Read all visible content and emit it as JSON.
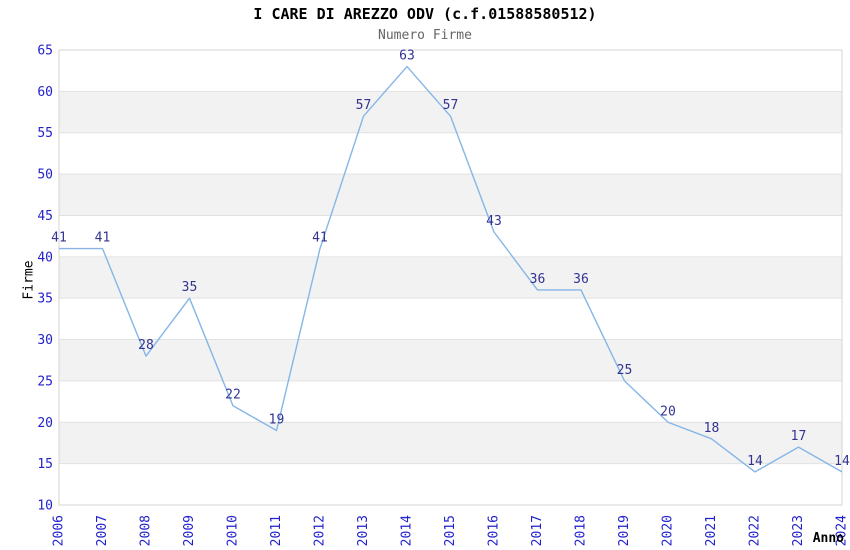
{
  "chart_data": {
    "type": "line",
    "title": "I CARE DI AREZZO ODV (c.f.01588580512)",
    "subtitle": "Numero Firme",
    "xlabel": "Anno",
    "ylabel": "Firme",
    "categories": [
      "2006",
      "2007",
      "2008",
      "2009",
      "2010",
      "2011",
      "2012",
      "2013",
      "2014",
      "2015",
      "2016",
      "2017",
      "2018",
      "2019",
      "2020",
      "2021",
      "2022",
      "2023",
      "2024"
    ],
    "values": [
      41,
      41,
      28,
      35,
      22,
      19,
      41,
      57,
      63,
      57,
      43,
      36,
      36,
      25,
      20,
      18,
      14,
      17,
      14
    ],
    "ylim": [
      10,
      65
    ],
    "ytick_step": 5,
    "yticks": [
      10,
      15,
      20,
      25,
      30,
      35,
      40,
      45,
      50,
      55,
      60,
      65
    ],
    "grid": "horizontal-bands",
    "legend": "none",
    "data_labels_shown": true,
    "x_tick_rotation_deg": -90,
    "colors": {
      "series_line": "#85b6e7",
      "tick_label": "#2222cc",
      "data_label": "#333392",
      "title": "#000000",
      "subtitle": "#666666",
      "axis_title": "#000000",
      "band_fill": "#f2f2f2",
      "gridline": "#e2e2e2",
      "plot_border": "#d4d4d4",
      "plot_background": "#ffffff"
    }
  }
}
